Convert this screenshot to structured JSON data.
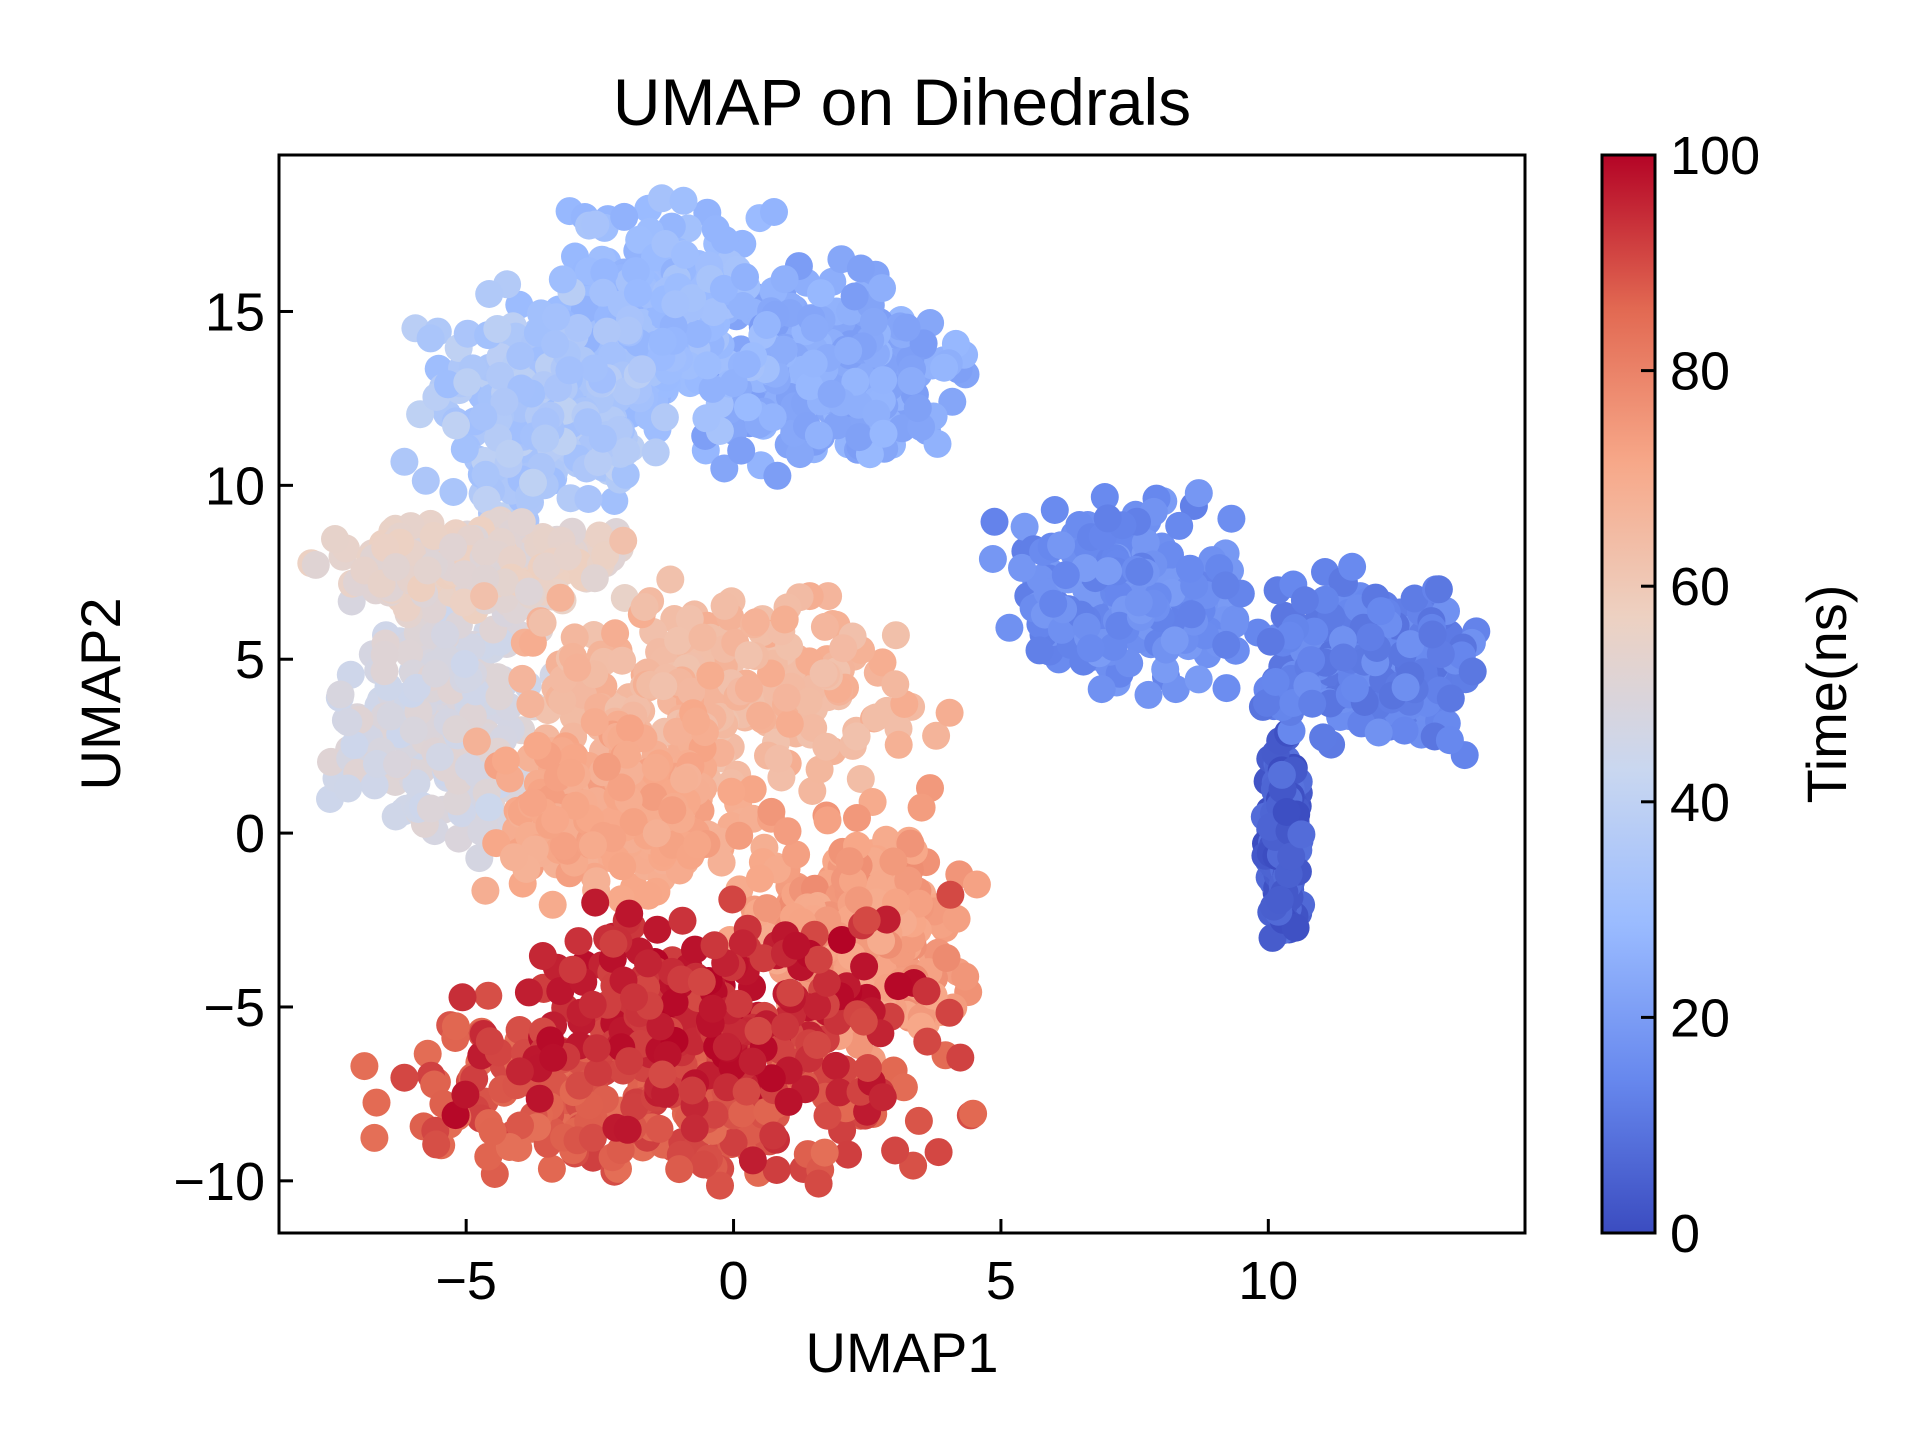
{
  "chart_data": {
    "type": "scatter",
    "title": "UMAP on Dihedrals",
    "xlabel": "UMAP1",
    "ylabel": "UMAP2",
    "xlim": [
      -8.5,
      14.8
    ],
    "ylim": [
      -11.5,
      19.5
    ],
    "xticks": [
      -5,
      0,
      5,
      10
    ],
    "xtick_labels": [
      "−5",
      "0",
      "5",
      "10"
    ],
    "yticks": [
      -10,
      -5,
      0,
      5,
      10,
      15
    ],
    "ytick_labels": [
      "−10",
      "−5",
      "0",
      "5",
      "10",
      "15"
    ],
    "colorbar": {
      "label": "Time(ns)",
      "range": [
        0,
        100
      ],
      "ticks": [
        0,
        20,
        40,
        60,
        80,
        100
      ],
      "tick_labels": [
        "0",
        "20",
        "40",
        "60",
        "80",
        "100"
      ],
      "colormap": "coolwarm",
      "stops": [
        "#3b4cc0",
        "#6788ee",
        "#9abbff",
        "#c9d7f0",
        "#edd1c2",
        "#f7a889",
        "#e26952",
        "#b40426"
      ]
    },
    "grid": false,
    "clusters": [
      {
        "x": [
          10.0,
          10.6
        ],
        "y": [
          -2.7,
          2.5
        ],
        "time": [
          0,
          9
        ]
      },
      {
        "x": [
          9.5,
          13.8
        ],
        "y": [
          2.5,
          7.4
        ],
        "time": [
          9,
          17
        ]
      },
      {
        "x": [
          5.2,
          9.6
        ],
        "y": [
          4.5,
          9.3
        ],
        "time": [
          12,
          20
        ]
      },
      {
        "x": [
          -0.5,
          4.1
        ],
        "y": [
          10.6,
          16.3
        ],
        "time": [
          20,
          28
        ]
      },
      {
        "x": [
          -3.5,
          0.5
        ],
        "y": [
          11.5,
          18.2
        ],
        "time": [
          26,
          33
        ]
      },
      {
        "x": [
          -5.6,
          -1.5
        ],
        "y": [
          9.0,
          15.3
        ],
        "time": [
          30,
          40
        ]
      },
      {
        "x": [
          -7.5,
          -3.5
        ],
        "y": [
          -0.2,
          6.9
        ],
        "time": [
          44,
          52
        ]
      },
      {
        "x": [
          -7.2,
          -2.5
        ],
        "y": [
          6.5,
          9.0
        ],
        "time": [
          50,
          58
        ]
      },
      {
        "x": [
          -4.5,
          3.8
        ],
        "y": [
          1.0,
          7.4
        ],
        "time": [
          62,
          70
        ]
      },
      {
        "x": [
          -4.5,
          0.5
        ],
        "y": [
          -1.7,
          2.8
        ],
        "time": [
          68,
          74
        ]
      },
      {
        "x": [
          0.2,
          4.3
        ],
        "y": [
          -6.1,
          0.5
        ],
        "time": [
          70,
          78
        ]
      },
      {
        "x": [
          -6.6,
          4.2
        ],
        "y": [
          -10.2,
          -5.0
        ],
        "time": [
          84,
          92
        ]
      },
      {
        "x": [
          -5.0,
          3.5
        ],
        "y": [
          -8.5,
          -2.0
        ],
        "time": [
          90,
          100
        ]
      }
    ]
  }
}
